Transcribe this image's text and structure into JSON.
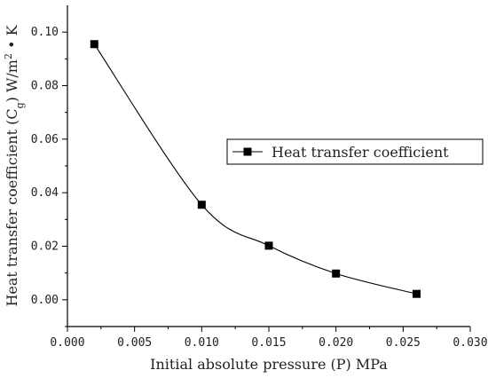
{
  "chart_data": {
    "type": "line",
    "xlabel": "Initial absolute pressure (P) MPa",
    "ylabel": {
      "main": "Heat transfer coefficient (C",
      "sub": "g",
      "close": ")",
      "unit_base": " W/m",
      "unit_sup": "2",
      "unit_end": " • K"
    },
    "xlim": [
      0.0,
      0.03
    ],
    "ylim": [
      -0.01,
      0.11
    ],
    "x_ticks": [
      0.0,
      0.005,
      0.01,
      0.015,
      0.02,
      0.025,
      0.03
    ],
    "x_tick_labels": [
      "0.000",
      "0.005",
      "0.010",
      "0.015",
      "0.020",
      "0.025",
      "0.030"
    ],
    "y_ticks": [
      0.0,
      0.02,
      0.04,
      0.06,
      0.08,
      0.1
    ],
    "y_tick_labels": [
      "0.00",
      "0.02",
      "0.04",
      "0.06",
      "0.08",
      "0.10"
    ],
    "series": [
      {
        "name": "Heat transfer coefficient",
        "marker": "square",
        "color": "#000000",
        "smooth": true,
        "x": [
          0.002,
          0.01,
          0.015,
          0.02,
          0.026
        ],
        "y": [
          0.0955,
          0.0355,
          0.0202,
          0.0098,
          0.0022
        ]
      }
    ],
    "grid": false,
    "legend_position": "right-middle"
  }
}
